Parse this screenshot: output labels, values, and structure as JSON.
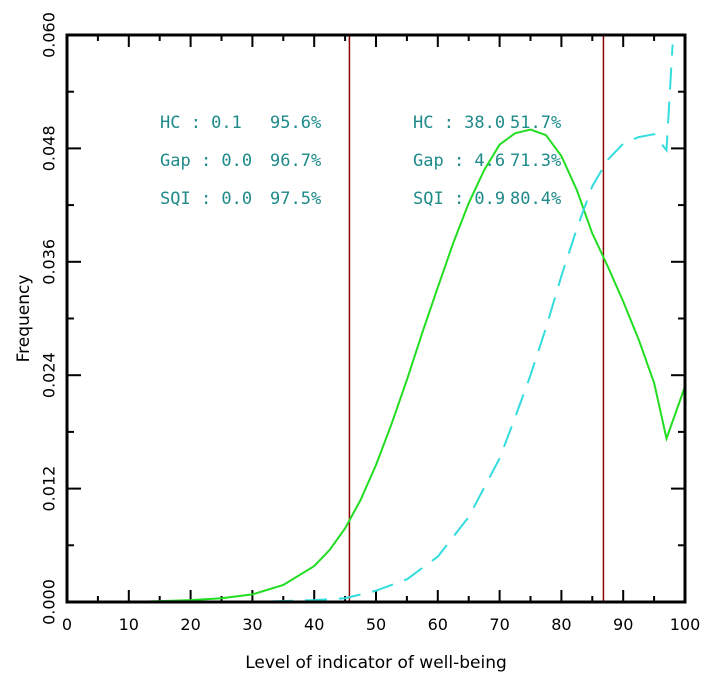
{
  "chart_data": {
    "type": "line",
    "title": "",
    "xlabel": "Level of indicator of well-being",
    "ylabel": "Frequency",
    "xlim": [
      0,
      100
    ],
    "ylim": [
      0,
      0.06
    ],
    "x_ticks": [
      "0",
      "10",
      "20",
      "30",
      "40",
      "50",
      "60",
      "70",
      "80",
      "90",
      "100"
    ],
    "y_ticks": [
      "0.000",
      "0.012",
      "0.024",
      "0.036",
      "0.048",
      "0.060"
    ],
    "grid": false,
    "series": [
      {
        "style": "solid",
        "color": "#22dd22",
        "points": [
          [
            0,
            0
          ],
          [
            5,
            0
          ],
          [
            10,
            0
          ],
          [
            15,
            0.0001
          ],
          [
            20,
            0.0002
          ],
          [
            25,
            0.0004
          ],
          [
            30,
            0.0008
          ],
          [
            35,
            0.0018
          ],
          [
            40,
            0.0038
          ],
          [
            42.5,
            0.0055
          ],
          [
            45,
            0.0078
          ],
          [
            47.5,
            0.0108
          ],
          [
            50,
            0.0145
          ],
          [
            52.5,
            0.0188
          ],
          [
            55,
            0.0235
          ],
          [
            57.5,
            0.0285
          ],
          [
            60,
            0.0333
          ],
          [
            62.5,
            0.038
          ],
          [
            65,
            0.0422
          ],
          [
            67.5,
            0.0457
          ],
          [
            70,
            0.0484
          ],
          [
            72.5,
            0.0496
          ],
          [
            75,
            0.05
          ],
          [
            77.5,
            0.0494
          ],
          [
            80,
            0.0472
          ],
          [
            82.5,
            0.0436
          ],
          [
            85,
            0.039
          ],
          [
            87.5,
            0.0355
          ],
          [
            90,
            0.0318
          ],
          [
            92.5,
            0.0278
          ],
          [
            95,
            0.0232
          ],
          [
            97,
            0.0173
          ],
          [
            100,
            0.0228
          ]
        ]
      },
      {
        "style": "dashed",
        "color": "#33dddd",
        "points": [
          [
            0,
            0
          ],
          [
            10,
            0
          ],
          [
            20,
            0
          ],
          [
            30,
            0
          ],
          [
            40,
            0.0002
          ],
          [
            45,
            0.0004
          ],
          [
            50,
            0.0012
          ],
          [
            55,
            0.0024
          ],
          [
            60,
            0.0048
          ],
          [
            65,
            0.009
          ],
          [
            70,
            0.0152
          ],
          [
            72.5,
            0.0195
          ],
          [
            75,
            0.024
          ],
          [
            77.5,
            0.029
          ],
          [
            80,
            0.0345
          ],
          [
            82.5,
            0.0395
          ],
          [
            85,
            0.044
          ],
          [
            87.5,
            0.0468
          ],
          [
            90,
            0.0485
          ],
          [
            92.5,
            0.0492
          ],
          [
            95,
            0.0495
          ],
          [
            97,
            0.0478
          ],
          [
            98,
            0.059
          ]
        ]
      }
    ],
    "vlines": [
      {
        "x": 45.7,
        "color": "#8b0000"
      },
      {
        "x": 86.8,
        "color": "#8b0000"
      }
    ],
    "annotations": {
      "left": [
        {
          "label": "HC  : 0.1",
          "pct": "95.6%"
        },
        {
          "label": "Gap : 0.0",
          "pct": "96.7%"
        },
        {
          "label": "SQI  : 0.0",
          "pct": "97.5%"
        }
      ],
      "right": [
        {
          "label": "HC  : 38.0",
          "pct": "51.7%"
        },
        {
          "label": "Gap : 4.6",
          "pct": "71.3%"
        },
        {
          "label": "SQI  : 0.9",
          "pct": "80.4%"
        }
      ]
    }
  }
}
